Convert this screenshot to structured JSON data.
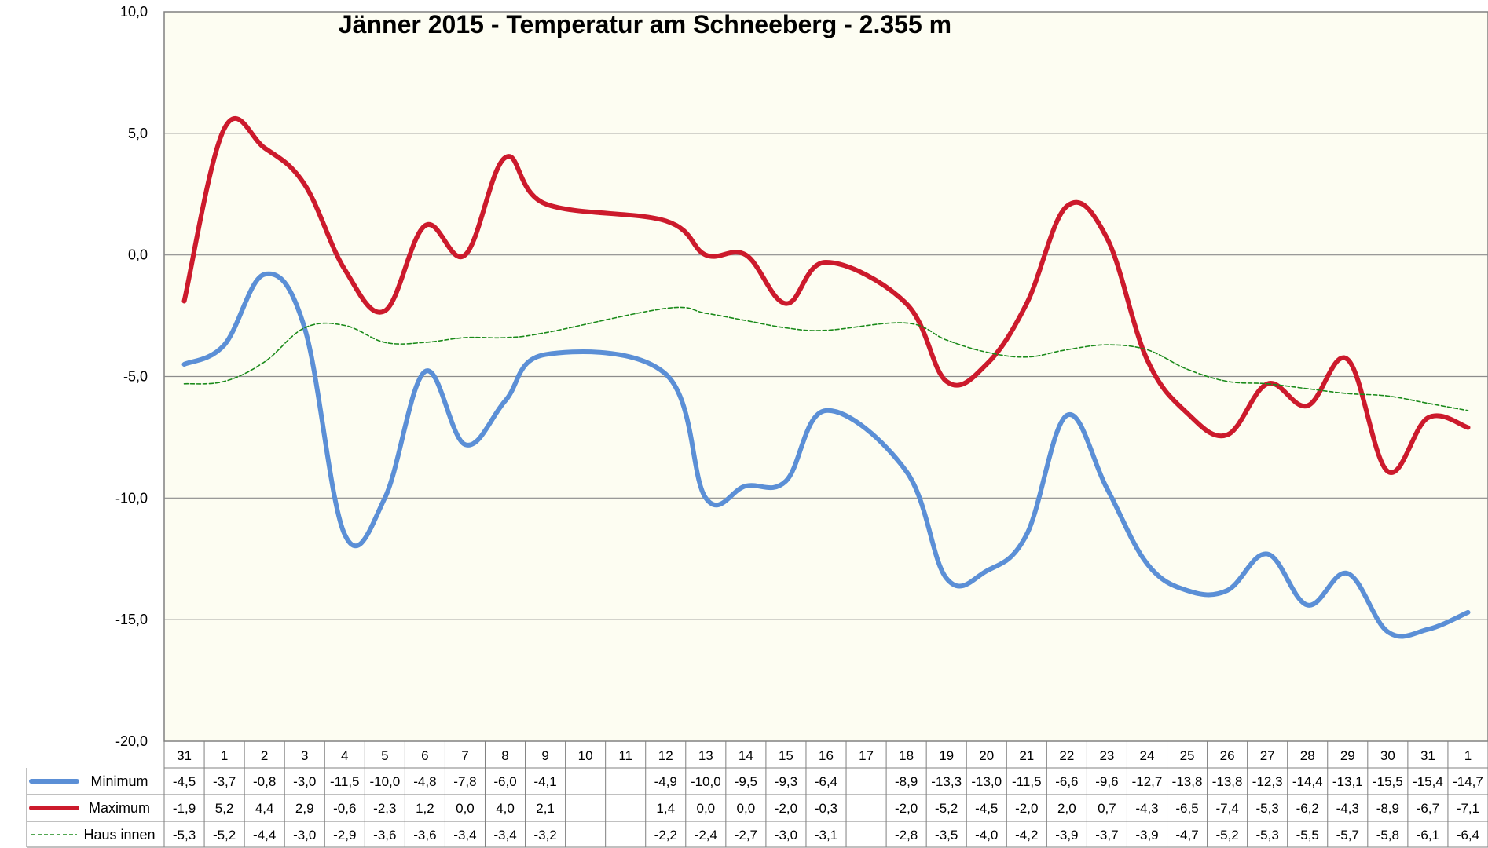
{
  "chart_data": {
    "type": "line",
    "title": "Jänner 2015 - Temperatur am Schneeberg - 2.355 m",
    "y_ticks": [
      "10,0",
      "5,0",
      "0,0",
      "-5,0",
      "-10,0",
      "-15,0",
      "-20,0"
    ],
    "ylim": [
      -20,
      10
    ],
    "grid": true,
    "legend": "table-left",
    "categories": [
      "31",
      "1",
      "2",
      "3",
      "4",
      "5",
      "6",
      "7",
      "8",
      "9",
      "10",
      "11",
      "12",
      "13",
      "14",
      "15",
      "16",
      "17",
      "18",
      "19",
      "20",
      "21",
      "22",
      "23",
      "24",
      "25",
      "26",
      "27",
      "28",
      "29",
      "30",
      "31",
      "1"
    ],
    "series": [
      {
        "name": "Minimum",
        "color": "#5b8fd6",
        "style": "solid-thick",
        "values": [
          -4.5,
          -3.7,
          -0.8,
          -3.0,
          -11.5,
          -10.0,
          -4.8,
          -7.8,
          -6.0,
          -4.1,
          null,
          null,
          -4.9,
          -10.0,
          -9.5,
          -9.3,
          -6.4,
          null,
          -8.9,
          -13.3,
          -13.0,
          -11.5,
          -6.6,
          -9.6,
          -12.7,
          -13.8,
          -13.8,
          -12.3,
          -14.4,
          -13.1,
          -15.5,
          -15.4,
          -14.7
        ],
        "labels": [
          "-4,5",
          "-3,7",
          "-0,8",
          "-3,0",
          "-11,5",
          "-10,0",
          "-4,8",
          "-7,8",
          "-6,0",
          "-4,1",
          "",
          "",
          "-4,9",
          "-10,0",
          "-9,5",
          "-9,3",
          "-6,4",
          "",
          "-8,9",
          "-13,3",
          "-13,0",
          "-11,5",
          "-6,6",
          "-9,6",
          "-12,7",
          "-13,8",
          "-13,8",
          "-12,3",
          "-14,4",
          "-13,1",
          "-15,5",
          "-15,4",
          "-14,7"
        ]
      },
      {
        "name": "Maximum",
        "color": "#cc1a2c",
        "style": "solid-thick",
        "values": [
          -1.9,
          5.2,
          4.4,
          2.9,
          -0.6,
          -2.3,
          1.2,
          0.0,
          4.0,
          2.1,
          null,
          null,
          1.4,
          0.0,
          0.0,
          -2.0,
          -0.3,
          null,
          -2.0,
          -5.2,
          -4.5,
          -2.0,
          2.0,
          0.7,
          -4.3,
          -6.5,
          -7.4,
          -5.3,
          -6.2,
          -4.3,
          -8.9,
          -6.7,
          -7.1
        ],
        "labels": [
          "-1,9",
          "5,2",
          "4,4",
          "2,9",
          "-0,6",
          "-2,3",
          "1,2",
          "0,0",
          "4,0",
          "2,1",
          "",
          "",
          "1,4",
          "0,0",
          "0,0",
          "-2,0",
          "-0,3",
          "",
          "-2,0",
          "-5,2",
          "-4,5",
          "-2,0",
          "2,0",
          "0,7",
          "-4,3",
          "-6,5",
          "-7,4",
          "-5,3",
          "-6,2",
          "-4,3",
          "-8,9",
          "-6,7",
          "-7,1"
        ]
      },
      {
        "name": "Haus innen",
        "color": "#1a8a1a",
        "style": "dashed-thin",
        "values": [
          -5.3,
          -5.2,
          -4.4,
          -3.0,
          -2.9,
          -3.6,
          -3.6,
          -3.4,
          -3.4,
          -3.2,
          null,
          null,
          -2.2,
          -2.4,
          -2.7,
          -3.0,
          -3.1,
          null,
          -2.8,
          -3.5,
          -4.0,
          -4.2,
          -3.9,
          -3.7,
          -3.9,
          -4.7,
          -5.2,
          -5.3,
          -5.5,
          -5.7,
          -5.8,
          -6.1,
          -6.4
        ],
        "labels": [
          "-5,3",
          "-5,2",
          "-4,4",
          "-3,0",
          "-2,9",
          "-3,6",
          "-3,6",
          "-3,4",
          "-3,4",
          "-3,2",
          "",
          "",
          "-2,2",
          "-2,4",
          "-2,7",
          "-3,0",
          "-3,1",
          "",
          "-2,8",
          "-3,5",
          "-4,0",
          "-4,2",
          "-3,9",
          "-3,7",
          "-3,9",
          "-4,7",
          "-5,2",
          "-5,3",
          "-5,5",
          "-5,7",
          "-5,8",
          "-6,1",
          "-6,4"
        ]
      }
    ]
  }
}
